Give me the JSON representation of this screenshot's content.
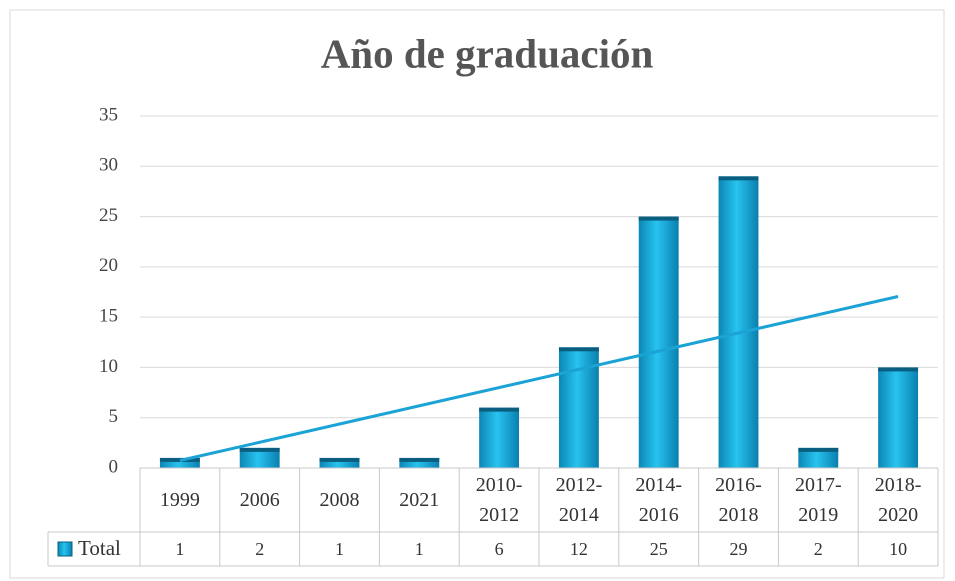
{
  "chart_data": {
    "type": "bar",
    "title": "Año de graduación",
    "categories": [
      "1999",
      "2006",
      "2008",
      "2021",
      "2010-2012",
      "2012-2014",
      "2014-2016",
      "2016-2018",
      "2017-2019",
      "2018-2020"
    ],
    "series": [
      {
        "name": "Total",
        "color": "#1fb4e0",
        "values": [
          1,
          2,
          1,
          1,
          6,
          12,
          25,
          29,
          2,
          10
        ]
      }
    ],
    "trendline": "linear",
    "trendline_color": "#1aa3d4",
    "ylim": [
      0,
      35
    ],
    "yticks": [
      0,
      5,
      10,
      15,
      20,
      25,
      30,
      35
    ],
    "grid": true,
    "data_table": true
  }
}
